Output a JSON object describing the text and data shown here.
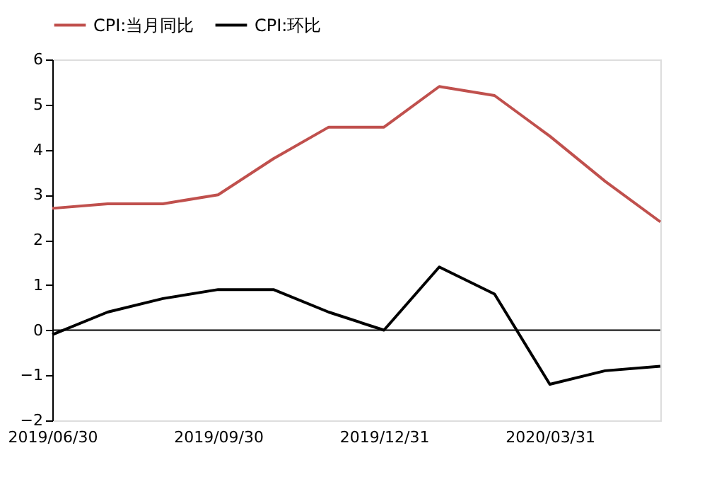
{
  "chart_data": {
    "type": "line",
    "categories": [
      "2019/06/30",
      null,
      null,
      "2019/09/30",
      null,
      null,
      "2019/12/31",
      null,
      null,
      "2020/03/31",
      null,
      null
    ],
    "series": [
      {
        "name": "CPI:当月同比",
        "color": "#c0504d",
        "values": [
          2.7,
          2.8,
          2.8,
          3.0,
          3.8,
          4.5,
          4.5,
          5.4,
          5.2,
          4.3,
          3.3,
          2.4
        ]
      },
      {
        "name": "CPI:环比",
        "color": "#000000",
        "values": [
          -0.1,
          0.4,
          0.7,
          0.9,
          0.9,
          0.4,
          0.0,
          1.4,
          0.8,
          -1.2,
          -0.9,
          -0.8
        ]
      }
    ],
    "ylim": [
      -2,
      6
    ],
    "yticks": [
      -2,
      -1,
      0,
      1,
      2,
      3,
      4,
      5,
      6
    ],
    "ref_lines": [
      {
        "axis": "y",
        "value": 0,
        "color": "#000000"
      }
    ],
    "grid": false,
    "legend": "top",
    "marker": "none",
    "line_style": "solid"
  }
}
